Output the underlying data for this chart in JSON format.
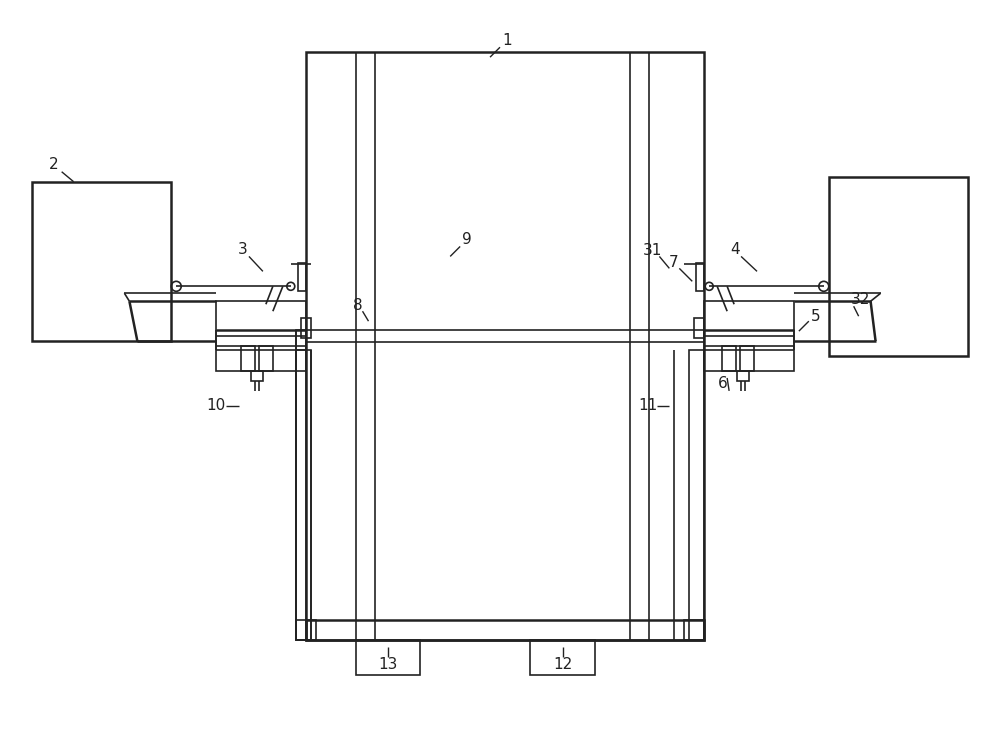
{
  "bg_color": "#ffffff",
  "line_color": "#222222",
  "lw": 1.2,
  "lw_thick": 1.8,
  "fig_width": 10.0,
  "fig_height": 7.36
}
